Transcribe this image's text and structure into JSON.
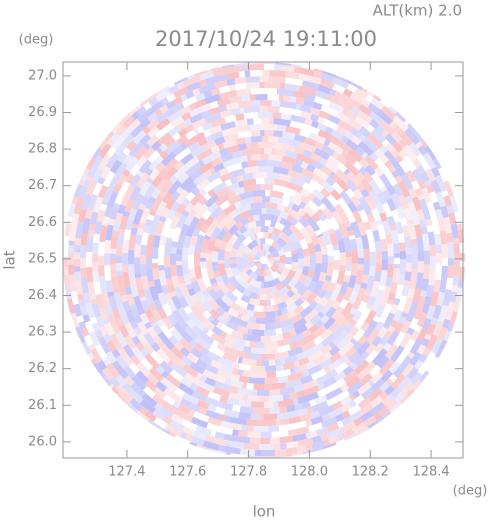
{
  "chart_data": {
    "type": "radar-scan",
    "title": "2017/10/24 19:11:00",
    "subtitle": "ALT(km) 2.0",
    "x_label": "lon",
    "y_label": "lat",
    "x_unit": "(deg)",
    "y_unit": "(deg)",
    "xlim": [
      127.19,
      128.505
    ],
    "ylim": [
      25.956,
      27.038
    ],
    "xticks": [
      127.4,
      127.6,
      127.8,
      {
        "value": 128.0,
        "label": "128.0"
      },
      128.2,
      128.4
    ],
    "yticks": [
      {
        "value": 26.0,
        "label": "26.0"
      },
      26.1,
      26.2,
      26.3,
      26.4,
      26.5,
      26.6,
      26.7,
      26.8,
      26.9,
      {
        "value": 27.0,
        "label": "27.0"
      }
    ]
  }
}
